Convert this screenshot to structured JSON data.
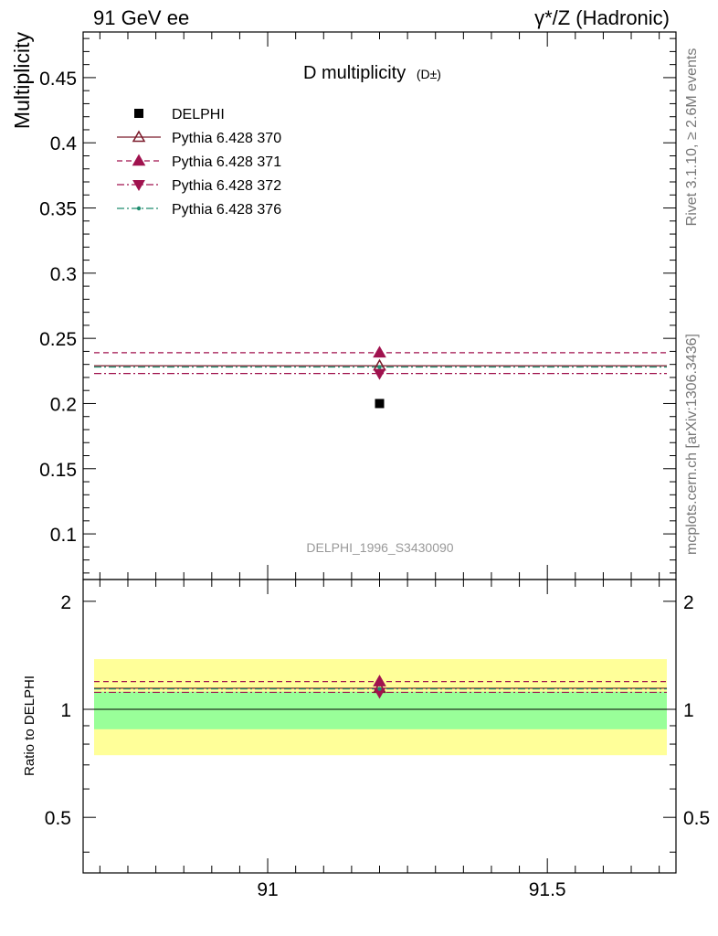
{
  "header": {
    "left": "91 GeV ee",
    "right": "γ*/Z (Hadronic)"
  },
  "side_labels": {
    "rivet": "Rivet 3.1.10, ≥ 2.6M events",
    "mcplots": "mcplots.cern.ch [arXiv:1306.3436]"
  },
  "chart_data": [
    {
      "type": "scatter",
      "title": "D multiplicity",
      "title_suffix": "(D±)",
      "ylabel": "Multiplicity",
      "xlabel": "",
      "watermark": "DELPHI_1996_S3430090",
      "xlim": [
        90.67,
        91.73
      ],
      "ylim": [
        0.065,
        0.485
      ],
      "y_ticks": [
        0.1,
        0.15,
        0.2,
        0.25,
        0.3,
        0.35,
        0.4,
        0.45
      ],
      "y_tick_labels": [
        "0.1",
        "0.15",
        "0.2",
        "0.25",
        "0.3",
        "0.35",
        "0.4",
        "0.45"
      ],
      "grid": false,
      "legend_position": "top-left",
      "series": [
        {
          "name": "DELPHI",
          "kind": "data",
          "x": [
            91.2
          ],
          "y": [
            0.2
          ],
          "color": "#000000",
          "marker": "square"
        },
        {
          "name": "Pythia 6.428 370",
          "kind": "mc",
          "x": [
            91.2
          ],
          "y": [
            0.229
          ],
          "color": "#7b1a2a",
          "marker": "triangle-up-open",
          "line": "solid"
        },
        {
          "name": "Pythia 6.428 371",
          "kind": "mc",
          "x": [
            91.2
          ],
          "y": [
            0.239
          ],
          "color": "#a0124e",
          "marker": "triangle-up",
          "line": "dashed"
        },
        {
          "name": "Pythia 6.428 372",
          "kind": "mc",
          "x": [
            91.2
          ],
          "y": [
            0.223
          ],
          "color": "#a0124e",
          "marker": "triangle-down",
          "line": "dashdot"
        },
        {
          "name": "Pythia 6.428 376",
          "kind": "mc",
          "x": [
            91.2
          ],
          "y": [
            0.228
          ],
          "color": "#1e8c6e",
          "marker": "dot",
          "line": "dashdot"
        }
      ]
    },
    {
      "type": "scatter",
      "title": "",
      "ylabel": "Ratio to DELPHI",
      "xlabel": "",
      "xlim": [
        90.67,
        91.73
      ],
      "ylim": [
        0.35,
        2.3
      ],
      "x_ticks": [
        91,
        91.5
      ],
      "x_tick_labels": [
        "91",
        "91.5"
      ],
      "y_ticks": [
        0.5,
        1,
        2
      ],
      "y_tick_labels": [
        "0.5",
        "1",
        "2"
      ],
      "grid": false,
      "bands": [
        {
          "name": "total uncertainty",
          "low": 0.745,
          "high": 1.38,
          "color": "#ffff99"
        },
        {
          "name": "statistical uncertainty",
          "low": 0.88,
          "high": 1.12,
          "color": "#99ff99"
        }
      ],
      "series": [
        {
          "name": "Pythia 6.428 370",
          "x": [
            91.2
          ],
          "y": [
            1.145
          ],
          "color": "#7b1a2a",
          "marker": "triangle-up-open",
          "line": "solid"
        },
        {
          "name": "Pythia 6.428 371",
          "x": [
            91.2
          ],
          "y": [
            1.195
          ],
          "color": "#a0124e",
          "marker": "triangle-up",
          "line": "dashed"
        },
        {
          "name": "Pythia 6.428 372",
          "x": [
            91.2
          ],
          "y": [
            1.115
          ],
          "color": "#a0124e",
          "marker": "triangle-down",
          "line": "dashdot"
        },
        {
          "name": "Pythia 6.428 376",
          "x": [
            91.2
          ],
          "y": [
            1.14
          ],
          "color": "#1e8c6e",
          "marker": "dot",
          "line": "dashdot"
        }
      ]
    }
  ]
}
